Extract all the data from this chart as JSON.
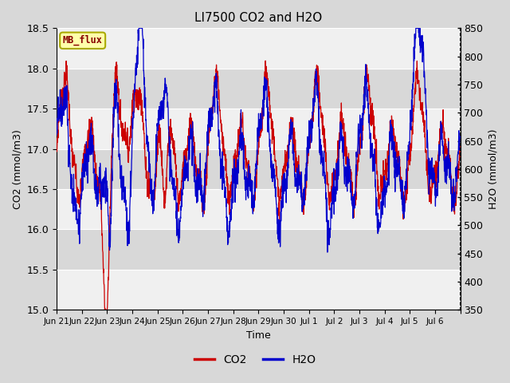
{
  "title": "LI7500 CO2 and H2O",
  "xlabel": "Time",
  "ylabel_left": "CO2 (mmol/m3)",
  "ylabel_right": "H2O (mmol/m3)",
  "co2_ylim": [
    15.0,
    18.5
  ],
  "h2o_ylim": [
    350,
    850
  ],
  "co2_yticks": [
    15.0,
    15.5,
    16.0,
    16.5,
    17.0,
    17.5,
    18.0,
    18.5
  ],
  "h2o_yticks": [
    350,
    400,
    450,
    500,
    550,
    600,
    650,
    700,
    750,
    800,
    850
  ],
  "co2_color": "#cc0000",
  "h2o_color": "#0000cc",
  "tag_text": "MB_flux",
  "tag_bg": "#ffffaa",
  "tag_border": "#aaaa00",
  "fig_bg": "#d8d8d8",
  "plot_bg": "#e8e8e8",
  "band_light": "#f0f0f0",
  "band_dark": "#d8d8d8",
  "legend_co2": "CO2",
  "legend_h2o": "H2O",
  "x_tick_labels": [
    "Jun 21",
    "Jun 22",
    "Jun 23",
    "Jun 24",
    "Jun 25",
    "Jun 26",
    "Jun 27",
    "Jun 28",
    "Jun 29",
    "Jun 30",
    "Jul 1",
    "Jul 2",
    "Jul 3",
    "Jul 4",
    "Jul 5",
    "Jul 6"
  ],
  "num_points": 2000
}
